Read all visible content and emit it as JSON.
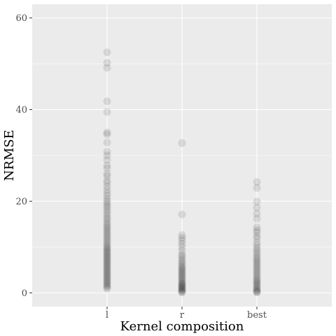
{
  "chart_data": {
    "type": "scatter",
    "xlabel": "Kernel composition",
    "ylabel": "NRMSE",
    "categories": [
      "l",
      "r",
      "best"
    ],
    "ylim": [
      -3,
      63
    ],
    "yticks": [
      0,
      20,
      40,
      60
    ],
    "yticks_minor": [
      10,
      30,
      50
    ],
    "grid": true,
    "point_color": "#000000",
    "point_opacity": 0.1,
    "panel_background": "#ebebeb",
    "grid_color": "#ffffff",
    "series": [
      {
        "category": "l",
        "values": [
          52.5,
          50.2,
          49.1,
          41.8,
          39.5,
          35.0,
          34.6,
          32.8,
          30.8,
          30.0,
          29.0,
          27.8,
          27.2,
          26.0,
          25.5,
          24.5,
          24.0,
          23.2,
          22.5,
          21.8,
          21.2,
          20.5,
          20.0,
          19.5,
          19.0,
          18.6,
          18.0,
          17.5,
          17.0,
          16.4,
          16.0,
          15.5,
          15.0,
          14.6,
          14.2,
          13.8,
          13.4,
          13.0,
          12.6,
          12.2,
          11.8,
          11.4,
          11.0,
          10.6,
          10.2,
          9.9,
          9.6,
          9.3,
          9.0,
          8.7,
          8.4,
          8.1,
          7.8,
          7.5,
          7.2,
          6.9,
          6.6,
          6.3,
          6.0,
          5.7,
          5.4,
          5.1,
          4.8,
          4.5,
          4.2,
          3.9,
          3.6,
          3.3,
          3.0,
          2.7,
          2.4,
          2.1,
          1.8,
          1.5,
          1.2,
          0.9
        ]
      },
      {
        "category": "r",
        "values": [
          32.7,
          17.1,
          12.6,
          12.0,
          11.4,
          10.7,
          10.0,
          9.2,
          8.4,
          8.0,
          7.5,
          7.0,
          6.6,
          6.2,
          5.8,
          5.5,
          5.2,
          4.9,
          4.6,
          4.3,
          4.0,
          3.7,
          3.4,
          3.1,
          2.8,
          2.5,
          2.2,
          2.0,
          1.8,
          1.6,
          1.4,
          1.2,
          1.0,
          0.8,
          0.6,
          0.4,
          0.2,
          0.1
        ]
      },
      {
        "category": "best",
        "values": [
          24.2,
          22.9,
          19.9,
          18.6,
          17.3,
          16.2,
          14.3,
          13.7,
          13.2,
          12.4,
          11.9,
          11.0,
          10.4,
          9.8,
          9.3,
          8.8,
          8.3,
          7.8,
          7.4,
          7.0,
          6.6,
          6.2,
          5.8,
          5.4,
          5.0,
          4.6,
          4.2,
          3.8,
          3.4,
          3.0,
          2.7,
          2.4,
          2.1,
          1.8,
          1.5,
          1.2,
          0.9,
          0.6,
          0.4,
          0.2,
          0.1
        ]
      }
    ]
  }
}
